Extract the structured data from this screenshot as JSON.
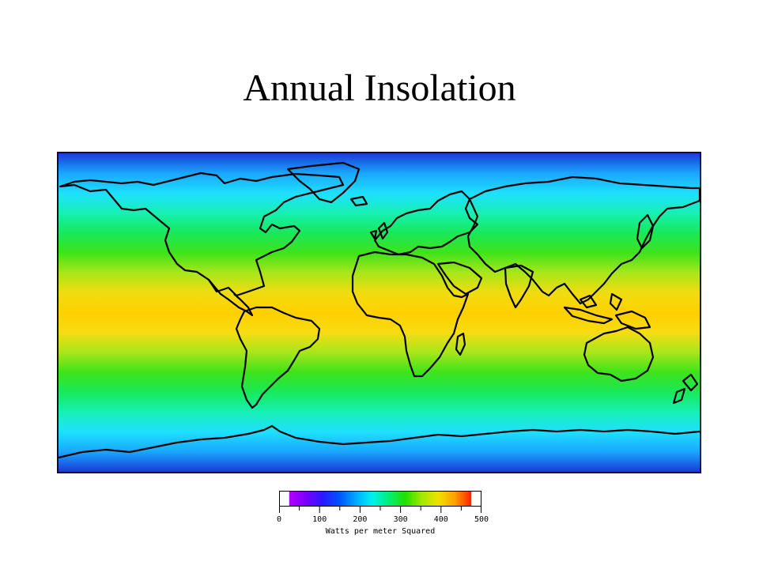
{
  "slide": {
    "title": "Annual Insolation"
  },
  "map": {
    "band_colors_north_to_south": [
      "#1a3ad6",
      "#1aa6ff",
      "#1ee0ff",
      "#16f0b4",
      "#18e85a",
      "#3fe31a",
      "#a8e61a",
      "#f0dc10",
      "#ffd000",
      "#f6dc12",
      "#a8e61a",
      "#3fe31a",
      "#18e85a",
      "#16f0b4",
      "#1ee0ff",
      "#1aa6ff",
      "#1a3ad6"
    ],
    "outline_color": "#000000"
  },
  "legend": {
    "colors": [
      "#b300ff",
      "#7a00ff",
      "#2a1aff",
      "#0050ff",
      "#00a8ff",
      "#00f0f0",
      "#00f078",
      "#20e000",
      "#a0e800",
      "#f0e000",
      "#ffa000",
      "#ff2000"
    ],
    "tick_labels": [
      "0",
      "100",
      "200",
      "300",
      "400",
      "500"
    ],
    "tick_values": [
      0,
      100,
      200,
      300,
      400,
      500
    ],
    "range": [
      0,
      500
    ],
    "caption": "Watts per meter Squared"
  }
}
